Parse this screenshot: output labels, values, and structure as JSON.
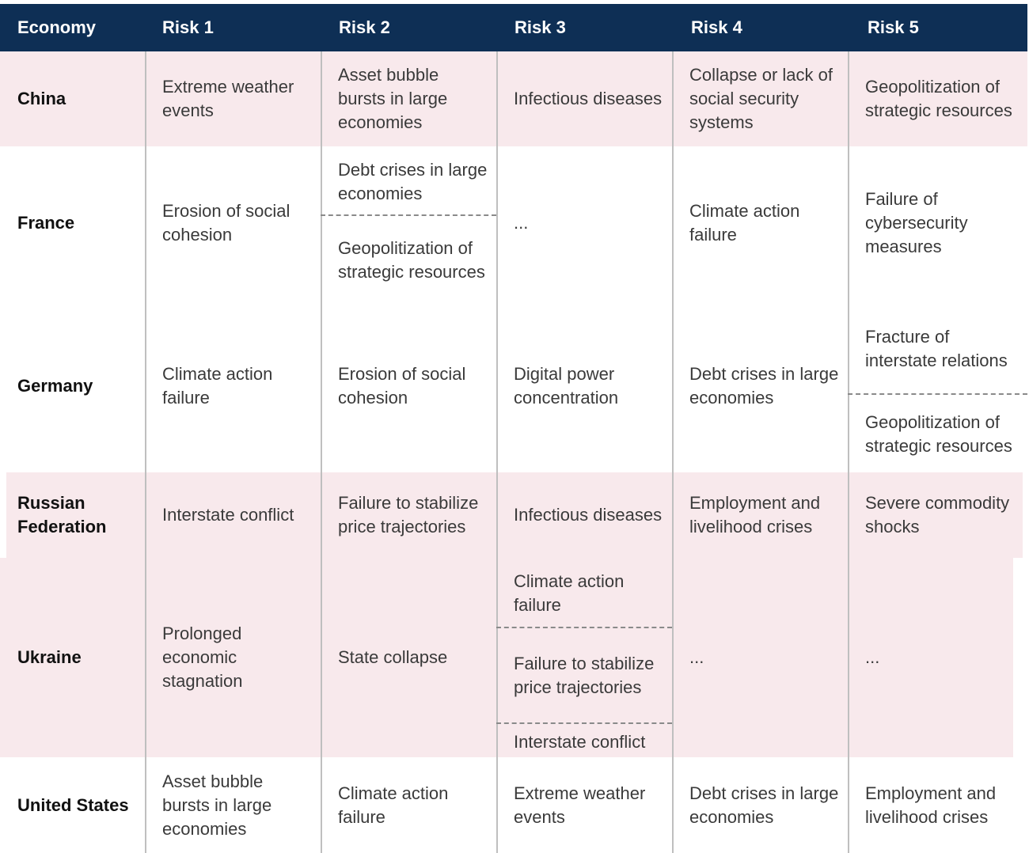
{
  "headers": [
    "Economy",
    "Risk 1",
    "Risk 2",
    "Risk 3",
    "Risk 4",
    "Risk 5"
  ],
  "rows": [
    {
      "economy": "China",
      "cells": [
        [
          "Extreme weather events"
        ],
        [
          "Asset bubble bursts in large economies"
        ],
        [
          "Infectious diseases"
        ],
        [
          "Collapse or lack of social security systems"
        ],
        [
          "Geopolitization of strategic resources"
        ]
      ]
    },
    {
      "economy": "France",
      "cells": [
        [
          "Erosion of social cohesion"
        ],
        [
          "Debt crises in large economies",
          "Geopolitization of strategic resources"
        ],
        [
          "..."
        ],
        [
          "Climate action failure"
        ],
        [
          "Failure of cybersecurity measures"
        ]
      ]
    },
    {
      "economy": "Germany",
      "cells": [
        [
          "Climate action failure"
        ],
        [
          "Erosion of social cohesion"
        ],
        [
          "Digital power concentration"
        ],
        [
          "Debt crises in large economies"
        ],
        [
          "Fracture of interstate relations",
          "Geopolitization of strategic resources"
        ]
      ]
    },
    {
      "economy": "Russian Federation",
      "cells": [
        [
          "Interstate conflict"
        ],
        [
          "Failure to stabilize price trajectories"
        ],
        [
          "Infectious diseases"
        ],
        [
          "Employment and livelihood crises"
        ],
        [
          "Severe commodity shocks"
        ]
      ]
    },
    {
      "economy": "Ukraine",
      "cells": [
        [
          "Prolonged economic stagnation"
        ],
        [
          "State collapse"
        ],
        [
          "Climate action failure",
          "Failure to stabilize price trajectories",
          "Interstate conflict"
        ],
        [
          "..."
        ],
        [
          "..."
        ]
      ]
    },
    {
      "economy": "United States",
      "cells": [
        [
          "Asset bubble bursts in large economies"
        ],
        [
          "Climate action failure"
        ],
        [
          "Extreme weather events"
        ],
        [
          "Debt crises in large economies"
        ],
        [
          "Employment and livelihood crises"
        ]
      ]
    }
  ],
  "colors": {
    "header_bg": "#0e2f55",
    "header_text": "#ffffff",
    "band_pink": "#f8e9ec",
    "grid": "#bfbfbf",
    "dash": "#8a8a8a"
  }
}
